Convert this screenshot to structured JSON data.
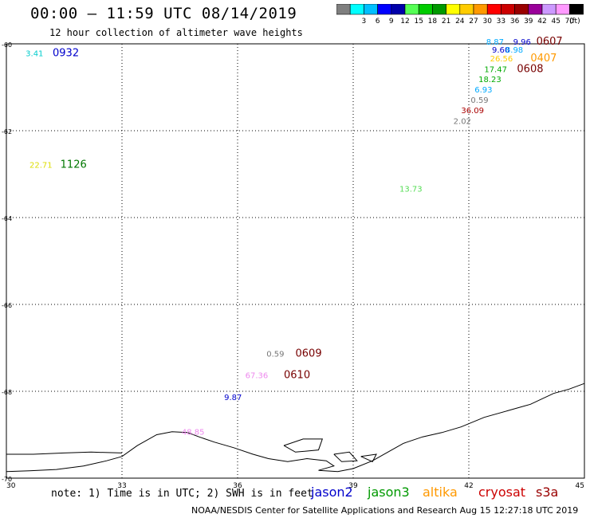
{
  "header": {
    "title": "00:00 – 11:59 UTC 08/14/2019",
    "subtitle": "12 hour collection of altimeter wave heights"
  },
  "legend": {
    "unit": "(ft)",
    "swatches": [
      {
        "color": "#7f7f7f",
        "label": ""
      },
      {
        "color": "#00ffff",
        "label": "3"
      },
      {
        "color": "#00bfff",
        "label": "6"
      },
      {
        "color": "#0000ff",
        "label": "9"
      },
      {
        "color": "#0000aa",
        "label": "12"
      },
      {
        "color": "#55ff55",
        "label": "15"
      },
      {
        "color": "#00cc00",
        "label": "18"
      },
      {
        "color": "#009900",
        "label": "21"
      },
      {
        "color": "#ffff00",
        "label": "24"
      },
      {
        "color": "#ffcc00",
        "label": "27"
      },
      {
        "color": "#ff9900",
        "label": "30"
      },
      {
        "color": "#ff0000",
        "label": "33"
      },
      {
        "color": "#cc0000",
        "label": "36"
      },
      {
        "color": "#990000",
        "label": "39"
      },
      {
        "color": "#990099",
        "label": "42"
      },
      {
        "color": "#cc99ff",
        "label": "45"
      },
      {
        "color": "#ff99ff",
        "label": "70"
      },
      {
        "color": "#000000",
        "label": ""
      }
    ]
  },
  "map": {
    "lon_range": [
      30,
      45
    ],
    "lat_range": [
      -70,
      -60
    ],
    "lon_ticks": [
      "30",
      "33",
      "36",
      "39",
      "42",
      "45"
    ],
    "lat_ticks": [
      "-60",
      "-62",
      "-64",
      "-66",
      "-68",
      "-70"
    ],
    "grid": true
  },
  "labels": [
    {
      "text": "3.41",
      "lon": 30.5,
      "lat": -60.28,
      "color": "#00cccc",
      "kind": "value"
    },
    {
      "text": "0932",
      "lon": 31.2,
      "lat": -60.28,
      "color": "#0000cc",
      "kind": "time"
    },
    {
      "text": "22.71",
      "lon": 30.6,
      "lat": -62.85,
      "color": "#dddd00",
      "kind": "value"
    },
    {
      "text": "1126",
      "lon": 31.4,
      "lat": -62.85,
      "color": "#007700",
      "kind": "time"
    },
    {
      "text": "13.73",
      "lon": 40.2,
      "lat": -63.4,
      "color": "#55dd55",
      "kind": "value"
    },
    {
      "text": "8.87",
      "lon": 42.45,
      "lat": -60.02,
      "color": "#00aaff",
      "kind": "value"
    },
    {
      "text": "9.96",
      "lon": 43.15,
      "lat": -60.02,
      "color": "#0000cc",
      "kind": "value"
    },
    {
      "text": "0607",
      "lon": 43.75,
      "lat": -60.02,
      "color": "#770000",
      "kind": "time"
    },
    {
      "text": "9.60",
      "lon": 42.6,
      "lat": -60.2,
      "color": "#0000cc",
      "kind": "value"
    },
    {
      "text": "8.98",
      "lon": 42.95,
      "lat": -60.2,
      "color": "#00aaff",
      "kind": "value"
    },
    {
      "text": "26.56",
      "lon": 42.55,
      "lat": -60.4,
      "color": "#ffcc00",
      "kind": "value"
    },
    {
      "text": "0407",
      "lon": 43.6,
      "lat": -60.4,
      "color": "#ff9900",
      "kind": "time"
    },
    {
      "text": "17.47",
      "lon": 42.4,
      "lat": -60.65,
      "color": "#00aa00",
      "kind": "value"
    },
    {
      "text": "0608",
      "lon": 43.25,
      "lat": -60.65,
      "color": "#770000",
      "kind": "time"
    },
    {
      "text": "18.23",
      "lon": 42.25,
      "lat": -60.88,
      "color": "#00aa00",
      "kind": "value"
    },
    {
      "text": "6.93",
      "lon": 42.15,
      "lat": -61.12,
      "color": "#00aaff",
      "kind": "value"
    },
    {
      "text": "0.59",
      "lon": 42.05,
      "lat": -61.36,
      "color": "#777777",
      "kind": "value"
    },
    {
      "text": "36.09",
      "lon": 41.8,
      "lat": -61.6,
      "color": "#aa0000",
      "kind": "value"
    },
    {
      "text": "2.02",
      "lon": 41.6,
      "lat": -61.84,
      "color": "#777777",
      "kind": "value"
    },
    {
      "text": "0.59",
      "lon": 36.75,
      "lat": -67.2,
      "color": "#777777",
      "kind": "value"
    },
    {
      "text": "0609",
      "lon": 37.5,
      "lat": -67.2,
      "color": "#770000",
      "kind": "time"
    },
    {
      "text": "67.36",
      "lon": 36.2,
      "lat": -67.7,
      "color": "#ee88ee",
      "kind": "value"
    },
    {
      "text": "0610",
      "lon": 37.2,
      "lat": -67.7,
      "color": "#770000",
      "kind": "time"
    },
    {
      "text": "9.87",
      "lon": 35.65,
      "lat": -68.2,
      "color": "#0000cc",
      "kind": "value"
    },
    {
      "text": "48.85",
      "lon": 34.55,
      "lat": -69.0,
      "color": "#ee88ee",
      "kind": "value"
    }
  ],
  "coastline": [
    [
      30.0,
      -69.85
    ],
    [
      30.6,
      -69.83
    ],
    [
      31.3,
      -69.8
    ],
    [
      32.0,
      -69.72
    ],
    [
      32.6,
      -69.6
    ],
    [
      33.0,
      -69.5
    ],
    [
      33.4,
      -69.25
    ],
    [
      33.9,
      -69.0
    ],
    [
      34.3,
      -68.93
    ],
    [
      34.7,
      -68.95
    ],
    [
      35.0,
      -69.05
    ],
    [
      35.4,
      -69.17
    ],
    [
      35.9,
      -69.3
    ],
    [
      36.4,
      -69.45
    ],
    [
      36.8,
      -69.55
    ],
    [
      37.3,
      -69.62
    ],
    [
      37.8,
      -69.55
    ],
    [
      38.3,
      -69.6
    ],
    [
      38.5,
      -69.72
    ],
    [
      38.1,
      -69.82
    ],
    [
      38.6,
      -69.85
    ],
    [
      39.0,
      -69.78
    ],
    [
      39.5,
      -69.6
    ],
    [
      39.9,
      -69.4
    ],
    [
      40.3,
      -69.2
    ],
    [
      40.8,
      -69.05
    ],
    [
      41.3,
      -68.95
    ],
    [
      41.8,
      -68.82
    ],
    [
      42.4,
      -68.6
    ],
    [
      43.0,
      -68.45
    ],
    [
      43.6,
      -68.3
    ],
    [
      44.2,
      -68.05
    ],
    [
      44.6,
      -67.95
    ],
    [
      45.0,
      -67.82
    ]
  ],
  "coast_west": [
    [
      30.0,
      -69.45
    ],
    [
      30.7,
      -69.45
    ],
    [
      31.5,
      -69.42
    ],
    [
      32.2,
      -69.4
    ],
    [
      33.0,
      -69.42
    ]
  ],
  "islands": [
    [
      [
        37.2,
        -69.25
      ],
      [
        37.7,
        -69.1
      ],
      [
        38.2,
        -69.1
      ],
      [
        38.1,
        -69.35
      ],
      [
        37.5,
        -69.4
      ],
      [
        37.2,
        -69.25
      ]
    ],
    [
      [
        38.5,
        -69.45
      ],
      [
        38.9,
        -69.4
      ],
      [
        39.1,
        -69.6
      ],
      [
        38.7,
        -69.62
      ],
      [
        38.5,
        -69.45
      ]
    ],
    [
      [
        39.2,
        -69.5
      ],
      [
        39.6,
        -69.45
      ],
      [
        39.5,
        -69.62
      ],
      [
        39.2,
        -69.5
      ]
    ]
  ],
  "footer": {
    "note": "note: 1) Time is in UTC; 2) SWH is in feet",
    "missions": [
      {
        "name": "jason2",
        "color": "#0000cc"
      },
      {
        "name": "jason3",
        "color": "#009900"
      },
      {
        "name": "altika",
        "color": "#ff9900"
      },
      {
        "name": "cryosat",
        "color": "#cc0000"
      },
      {
        "name": "s3a",
        "color": "#990000"
      }
    ],
    "credit": "NOAA/NESDIS Center for Satellite Applications and Research   Aug 15 12:27:18 UTC 2019"
  }
}
